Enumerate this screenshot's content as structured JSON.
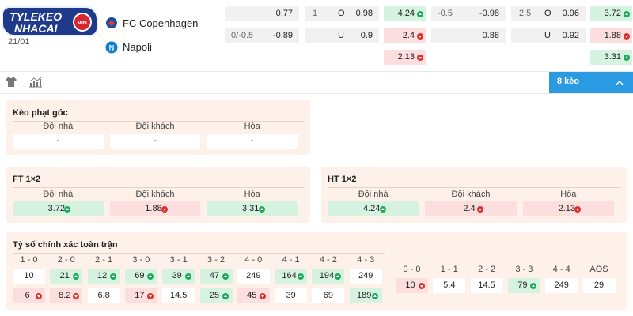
{
  "header": {
    "logo": {
      "line1": "TYLEKEO",
      "line2": "NHACAI",
      "badge": "VIN"
    },
    "date": "21/01",
    "home": "FC Copenhagen",
    "away": "Napoli"
  },
  "odds_left": {
    "handicap": [
      {
        "value": "0.77"
      },
      {
        "line": "0/-0.5",
        "value": "-0.89"
      }
    ],
    "total": [
      {
        "line": "1",
        "side": "O",
        "value": "0.98"
      },
      {
        "side": "U",
        "value": "0.9"
      }
    ],
    "x12": [
      {
        "value": "4.24",
        "trend": "up"
      },
      {
        "value": "2.4",
        "trend": "down"
      },
      {
        "value": "2.13",
        "trend": "down"
      }
    ]
  },
  "odds_right": {
    "handicap": [
      {
        "line": "-0.5",
        "value": "-0.98"
      },
      {
        "value": "0.88"
      }
    ],
    "total": [
      {
        "line": "2.5",
        "side": "O",
        "value": "0.96"
      },
      {
        "side": "U",
        "value": "0.92"
      }
    ],
    "x12": [
      {
        "value": "3.72",
        "trend": "up"
      },
      {
        "value": "1.88",
        "trend": "down"
      },
      {
        "value": "3.31",
        "trend": "up"
      }
    ]
  },
  "toolbar": {
    "button": "8 kèo"
  },
  "corners": {
    "title": "Kèo phạt góc",
    "columns": [
      {
        "label": "Đội nhà",
        "value": "-"
      },
      {
        "label": "Đội khách",
        "value": "-"
      },
      {
        "label": "Hòa",
        "value": "-"
      }
    ]
  },
  "ft_1x2": {
    "title": "FT 1×2",
    "columns": [
      {
        "label": "Đội nhà",
        "value": "3.72",
        "trend": "up"
      },
      {
        "label": "Đội khách",
        "value": "1.88",
        "trend": "down"
      },
      {
        "label": "Hòa",
        "value": "3.31",
        "trend": "up"
      }
    ]
  },
  "ht_1x2": {
    "title": "HT 1×2",
    "columns": [
      {
        "label": "Đội nhà",
        "value": "4.24",
        "trend": "up"
      },
      {
        "label": "Đội khách",
        "value": "2.4",
        "trend": "down"
      },
      {
        "label": "Hòa",
        "value": "2.13",
        "trend": "down"
      }
    ]
  },
  "correct_score": {
    "title": "Tỷ số chính xác toàn trận",
    "home_away": [
      {
        "score": "1 - 0",
        "home": {
          "value": "10"
        },
        "away": {
          "value": "6",
          "trend": "down"
        }
      },
      {
        "score": "2 - 0",
        "home": {
          "value": "21",
          "trend": "up"
        },
        "away": {
          "value": "8.2",
          "trend": "down"
        }
      },
      {
        "score": "2 - 1",
        "home": {
          "value": "12",
          "trend": "up"
        },
        "away": {
          "value": "6.8"
        }
      },
      {
        "score": "3 - 0",
        "home": {
          "value": "69",
          "trend": "up"
        },
        "away": {
          "value": "17",
          "trend": "down"
        }
      },
      {
        "score": "3 - 1",
        "home": {
          "value": "39",
          "trend": "up"
        },
        "away": {
          "value": "14.5"
        }
      },
      {
        "score": "3 - 2",
        "home": {
          "value": "47",
          "trend": "up"
        },
        "away": {
          "value": "25",
          "trend": "up"
        }
      },
      {
        "score": "4 - 0",
        "home": {
          "value": "249"
        },
        "away": {
          "value": "45",
          "trend": "down"
        }
      },
      {
        "score": "4 - 1",
        "home": {
          "value": "164",
          "trend": "up"
        },
        "away": {
          "value": "39"
        }
      },
      {
        "score": "4 - 2",
        "home": {
          "value": "194",
          "trend": "up"
        },
        "away": {
          "value": "69"
        }
      },
      {
        "score": "4 - 3",
        "home": {
          "value": "249"
        },
        "away": {
          "value": "189",
          "trend": "up"
        }
      }
    ],
    "draw": [
      {
        "score": "0 - 0",
        "value": "10",
        "trend": "down"
      },
      {
        "score": "1 - 1",
        "value": "5.4"
      },
      {
        "score": "2 - 2",
        "value": "14.5"
      },
      {
        "score": "3 - 3",
        "value": "79",
        "trend": "up"
      },
      {
        "score": "4 - 4",
        "value": "249"
      },
      {
        "score": "AOS",
        "value": "29"
      }
    ]
  }
}
